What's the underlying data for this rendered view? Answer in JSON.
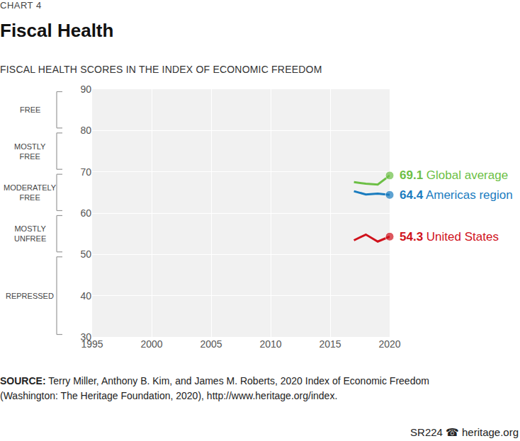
{
  "chart_data": {
    "type": "line",
    "label": "CHART 4",
    "title": "Fiscal Health",
    "subtitle": "FISCAL HEALTH SCORES IN THE INDEX OF ECONOMIC FREEDOM",
    "x": [
      2017,
      2018,
      2019,
      2020
    ],
    "series": [
      {
        "name": "Global average",
        "color": "#6cbf45",
        "values": [
          67.5,
          67.1,
          66.9,
          69.1
        ],
        "value_labels": [
          null,
          null,
          null,
          "69.1"
        ],
        "marker": "circle"
      },
      {
        "name": "Americas region",
        "color": "#1a7cbf",
        "values": [
          65.3,
          64.5,
          64.7,
          64.4
        ],
        "value_labels": [
          null,
          null,
          null,
          "64.4"
        ],
        "marker": "circle"
      },
      {
        "name": "United States",
        "color": "#d0111b",
        "values": [
          53.4,
          54.8,
          53.1,
          54.3
        ],
        "value_labels": [
          null,
          null,
          null,
          "54.3"
        ],
        "marker": "circle"
      }
    ],
    "xlim": [
      1995,
      2020
    ],
    "xticks": [
      1995,
      2000,
      2005,
      2010,
      2015,
      2020
    ],
    "ylim": [
      30,
      90
    ],
    "yticks": [
      30,
      40,
      50,
      60,
      70,
      80,
      90
    ],
    "grid": true,
    "bands": [
      {
        "label": [
          "FREE"
        ],
        "from": 80,
        "to": 90
      },
      {
        "label": [
          "MOSTLY",
          "FREE"
        ],
        "from": 70,
        "to": 80
      },
      {
        "label": [
          "MODERATELY",
          "FREE"
        ],
        "from": 60,
        "to": 70
      },
      {
        "label": [
          "MOSTLY",
          "UNFREE"
        ],
        "from": 50,
        "to": 60
      },
      {
        "label": [
          "REPRESSED"
        ],
        "from": 30,
        "to": 50
      }
    ],
    "source_label": "SOURCE:",
    "source": "Terry Miller, Anthony B. Kim, and James M. Roberts, 2020 Index of Economic Freedom (Washington: The Heritage Foundation, 2020), http://www.heritage.org/index.",
    "footer": "SR224 ☎ heritage.org"
  }
}
